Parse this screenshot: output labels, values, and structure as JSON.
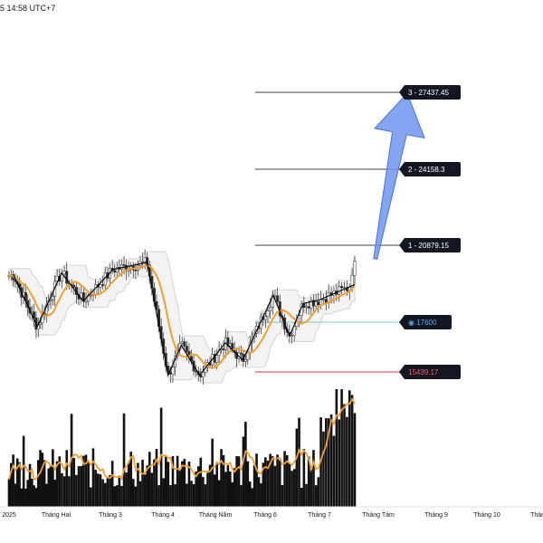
{
  "header": {
    "timestamp": "5 14:58 UTC+7"
  },
  "colors": {
    "candle": "#2b2b2b",
    "ma": "#f0a030",
    "band": "#d9d9d9",
    "zigzag": "#000000",
    "arrow": "#6f97f0",
    "support_line": "#e03a4a",
    "entry_line": "#4cbfb0",
    "entry_text": "#5aa7e6",
    "support_text": "#ff5a6a",
    "tag_bg": "#131722"
  },
  "chart_data": {
    "type": "candlestick",
    "x_ticks": [
      "2025",
      "Tháng Hai",
      "Tháng 3",
      "Tháng 4",
      "Tháng Năm",
      "Tháng 6",
      "Tháng 7",
      "Tháng Tám",
      "Tháng 9",
      "Tháng 10",
      "Tháng"
    ],
    "levels": [
      {
        "id": "target-3",
        "label": "3 - 27437.45",
        "value": 27437.45
      },
      {
        "id": "target-2",
        "label": "2 - 24158.3",
        "value": 24158.3
      },
      {
        "id": "target-1",
        "label": "1 - 20879.15",
        "value": 20879.15
      },
      {
        "id": "entry",
        "label": "◉ 17600",
        "value": 17600
      },
      {
        "id": "support",
        "label": "15439.17",
        "value": 15439.17
      }
    ],
    "price_range": [
      14800,
      28500
    ],
    "ma_series_name": "",
    "zigzag": [
      {
        "month": 0.1,
        "price": 19600
      },
      {
        "month": 0.6,
        "price": 17400
      },
      {
        "month": 1.1,
        "price": 19700
      },
      {
        "month": 1.5,
        "price": 18500
      },
      {
        "month": 2.05,
        "price": 19850
      },
      {
        "month": 2.7,
        "price": 20150
      },
      {
        "month": 3.1,
        "price": 15300
      },
      {
        "month": 3.35,
        "price": 16600
      },
      {
        "month": 3.7,
        "price": 15300
      },
      {
        "month": 4.2,
        "price": 16700
      },
      {
        "month": 4.55,
        "price": 15950
      },
      {
        "month": 5.15,
        "price": 18750
      },
      {
        "month": 5.45,
        "price": 17000
      },
      {
        "month": 5.7,
        "price": 18400
      },
      {
        "month": 6.0,
        "price": 18550
      },
      {
        "month": 6.6,
        "price": 19200
      }
    ],
    "arrow": {
      "from": {
        "month": 6.95,
        "price": 20300
      },
      "to": {
        "month": 7.5,
        "price": 27400
      }
    },
    "grid": false,
    "legend": "none"
  }
}
